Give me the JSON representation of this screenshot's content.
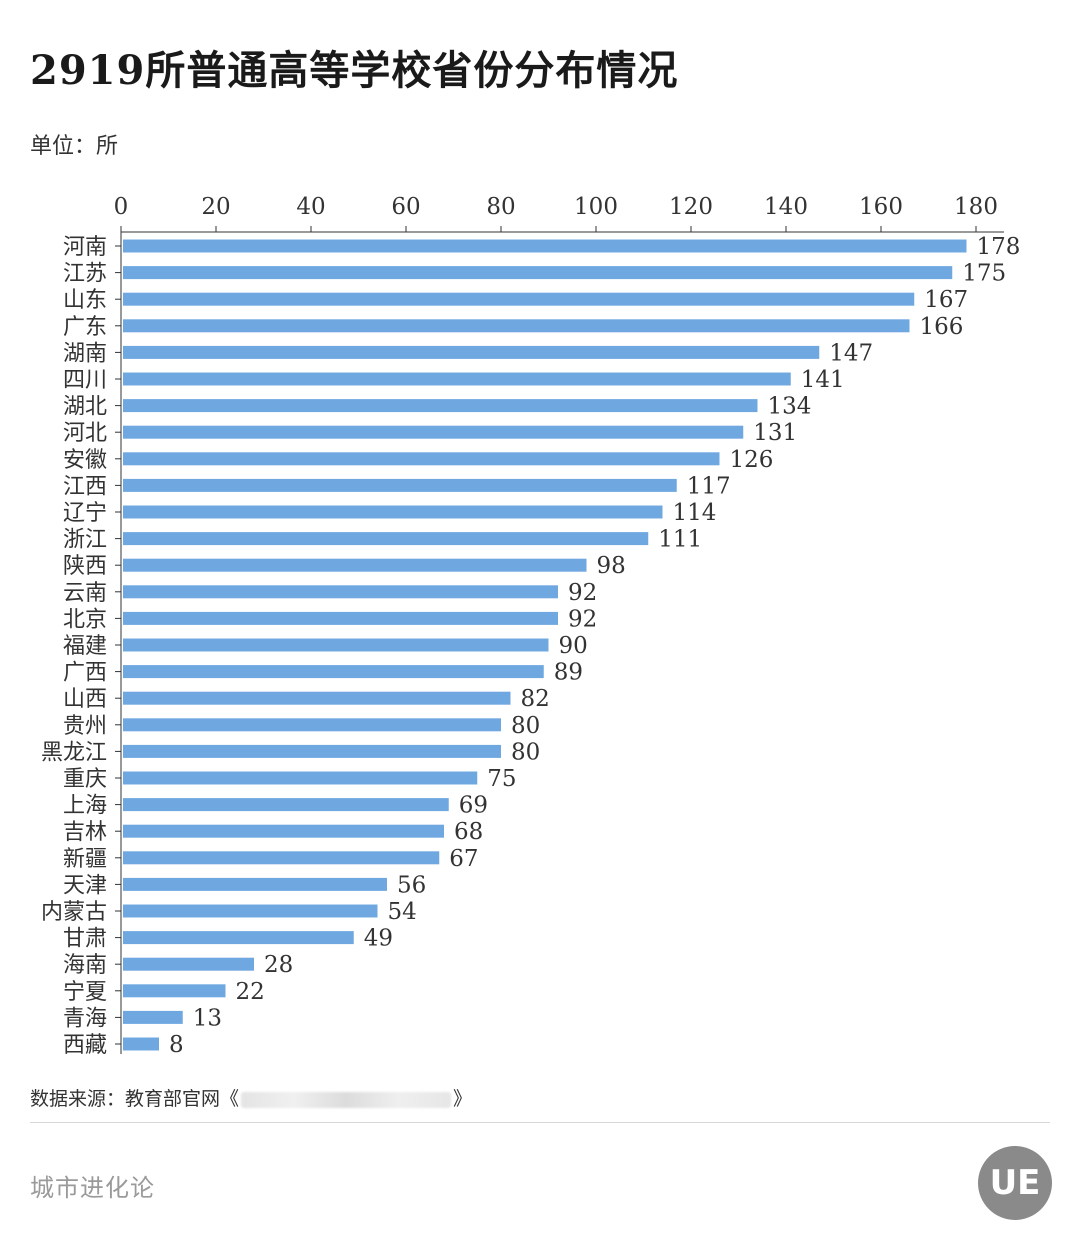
{
  "header": {
    "title": "2919所普通高等学校省份分布情况",
    "unit": "单位：所"
  },
  "footer": {
    "source_prefix": "数据来源：教育部官网《",
    "source_suffix": "》",
    "brand": "城市进化论",
    "logo_text": "UE"
  },
  "colors": {
    "bar": "#6fa8e0",
    "axis": "#333333",
    "label": "#333333"
  },
  "chart_data": {
    "type": "bar",
    "orientation": "horizontal",
    "title": "2919所普通高等学校省份分布情况",
    "unit": "单位：所",
    "xlim": [
      0,
      180
    ],
    "xticks": [
      0,
      20,
      40,
      60,
      80,
      100,
      120,
      140,
      160,
      180
    ],
    "axis_position": "top",
    "grid": false,
    "categories": [
      "河南",
      "江苏",
      "山东",
      "广东",
      "湖南",
      "四川",
      "湖北",
      "河北",
      "安徽",
      "江西",
      "辽宁",
      "浙江",
      "陕西",
      "云南",
      "北京",
      "福建",
      "广西",
      "山西",
      "贵州",
      "黑龙江",
      "重庆",
      "上海",
      "吉林",
      "新疆",
      "天津",
      "内蒙古",
      "甘肃",
      "海南",
      "宁夏",
      "青海",
      "西藏"
    ],
    "values": [
      178,
      175,
      167,
      166,
      147,
      141,
      134,
      131,
      126,
      117,
      114,
      111,
      98,
      92,
      92,
      90,
      89,
      82,
      80,
      80,
      75,
      69,
      68,
      67,
      56,
      54,
      49,
      28,
      22,
      13,
      8
    ]
  }
}
